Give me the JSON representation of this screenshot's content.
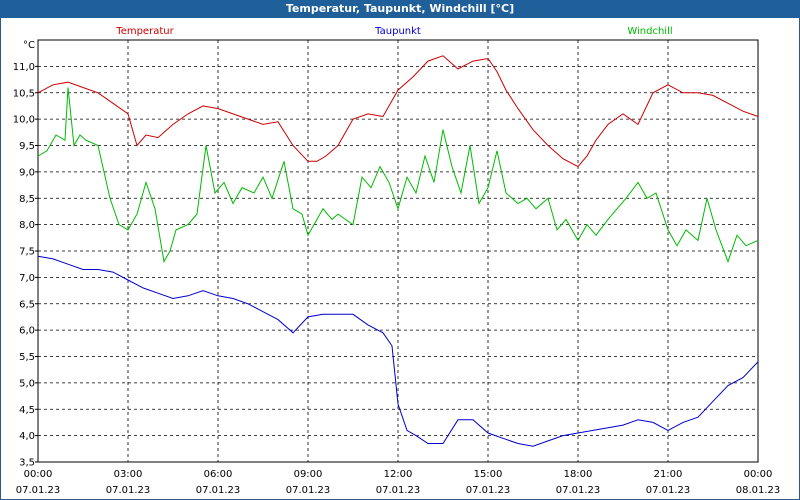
{
  "window": {
    "title": "Temperatur, Taupunkt, Windchill [°C]"
  },
  "chart_data": {
    "type": "line",
    "title": "Temperatur, Taupunkt, Windchill [°C]",
    "ylabel": "°C",
    "ylim": [
      3.5,
      11.5
    ],
    "grid": true,
    "yticks": [
      "3,5",
      "4,0",
      "4,5",
      "5,0",
      "5,5",
      "6,0",
      "6,5",
      "7,0",
      "7,5",
      "8,0",
      "8,5",
      "9,0",
      "9,5",
      "10,0",
      "10,5",
      "11,0"
    ],
    "xticks": [
      {
        "time": "00:00",
        "date": "07.01.23"
      },
      {
        "time": "03:00",
        "date": "07.01.23"
      },
      {
        "time": "06:00",
        "date": "07.01.23"
      },
      {
        "time": "09:00",
        "date": "07.01.23"
      },
      {
        "time": "12:00",
        "date": "07.01.23"
      },
      {
        "time": "15:00",
        "date": "07.01.23"
      },
      {
        "time": "18:00",
        "date": "07.01.23"
      },
      {
        "time": "21:00",
        "date": "07.01.23"
      },
      {
        "time": "00:00",
        "date": "08.01.23"
      }
    ],
    "series": [
      {
        "name": "Temperatur",
        "color": "#cc0000",
        "x": [
          0,
          0.5,
          1,
          1.5,
          2,
          2.5,
          3,
          3.3,
          3.6,
          4,
          4.5,
          5,
          5.5,
          6,
          6.5,
          7,
          7.5,
          8,
          8.5,
          9,
          9.3,
          9.6,
          10,
          10.5,
          11,
          11.5,
          12,
          12.5,
          13,
          13.5,
          14,
          14.5,
          15,
          15.3,
          15.6,
          16,
          16.5,
          17,
          17.5,
          18,
          18.3,
          18.6,
          19,
          19.5,
          20,
          20.5,
          21,
          21.5,
          22,
          22.5,
          23,
          23.5,
          24
        ],
        "values": [
          10.5,
          10.65,
          10.7,
          10.6,
          10.5,
          10.3,
          10.1,
          9.5,
          9.7,
          9.65,
          9.9,
          10.1,
          10.25,
          10.2,
          10.1,
          10.0,
          9.9,
          9.95,
          9.5,
          9.2,
          9.2,
          9.3,
          9.5,
          10.0,
          10.1,
          10.05,
          10.55,
          10.8,
          11.1,
          11.2,
          10.95,
          11.1,
          11.15,
          10.9,
          10.55,
          10.2,
          9.8,
          9.5,
          9.25,
          9.1,
          9.3,
          9.6,
          9.9,
          10.1,
          9.9,
          10.5,
          10.65,
          10.5,
          10.5,
          10.45,
          10.3,
          10.15,
          10.05
        ]
      },
      {
        "name": "Taupunkt",
        "color": "#0000cc",
        "x": [
          0,
          0.5,
          1,
          1.5,
          2,
          2.5,
          3,
          3.5,
          4,
          4.5,
          5,
          5.5,
          6,
          6.5,
          7,
          7.5,
          8,
          8.5,
          9,
          9.5,
          10,
          10.5,
          11,
          11.5,
          11.8,
          12,
          12.3,
          12.6,
          13,
          13.5,
          14,
          14.5,
          15,
          15.5,
          16,
          16.5,
          17,
          17.5,
          18,
          18.5,
          19,
          19.5,
          20,
          20.5,
          21,
          21.5,
          22,
          22.5,
          23,
          23.5,
          24
        ],
        "values": [
          7.4,
          7.35,
          7.25,
          7.15,
          7.15,
          7.1,
          6.95,
          6.8,
          6.7,
          6.6,
          6.65,
          6.75,
          6.65,
          6.6,
          6.5,
          6.35,
          6.2,
          5.95,
          6.25,
          6.3,
          6.3,
          6.3,
          6.1,
          5.95,
          5.7,
          4.6,
          4.1,
          4.0,
          3.85,
          3.85,
          4.3,
          4.3,
          4.05,
          3.95,
          3.85,
          3.8,
          3.9,
          4.0,
          4.05,
          4.1,
          4.15,
          4.2,
          4.3,
          4.25,
          4.1,
          4.25,
          4.35,
          4.65,
          4.95,
          5.1,
          5.4
        ]
      },
      {
        "name": "Windchill",
        "color": "#00bb00",
        "x": [
          0,
          0.3,
          0.6,
          0.9,
          1.0,
          1.2,
          1.4,
          1.6,
          2,
          2.4,
          2.7,
          3,
          3.3,
          3.6,
          3.9,
          4.2,
          4.4,
          4.6,
          5,
          5.3,
          5.6,
          5.9,
          6.2,
          6.5,
          6.8,
          7.2,
          7.5,
          7.8,
          8.2,
          8.5,
          8.8,
          9.0,
          9.2,
          9.5,
          9.8,
          10,
          10.5,
          10.8,
          11.1,
          11.4,
          11.7,
          12,
          12.3,
          12.6,
          12.9,
          13.2,
          13.5,
          13.8,
          14.1,
          14.4,
          14.7,
          15,
          15.3,
          15.6,
          16,
          16.3,
          16.6,
          17,
          17.3,
          17.6,
          18,
          18.3,
          18.6,
          19,
          19.3,
          19.6,
          20,
          20.3,
          20.6,
          21,
          21.3,
          21.6,
          22,
          22.3,
          22.6,
          23,
          23.3,
          23.6,
          24
        ],
        "values": [
          9.3,
          9.4,
          9.7,
          9.6,
          10.6,
          9.5,
          9.7,
          9.6,
          9.5,
          8.5,
          8.0,
          7.9,
          8.2,
          8.8,
          8.3,
          7.3,
          7.5,
          7.9,
          8.0,
          8.2,
          9.5,
          8.6,
          8.8,
          8.4,
          8.7,
          8.6,
          8.9,
          8.5,
          9.2,
          8.3,
          8.2,
          7.8,
          8.0,
          8.3,
          8.1,
          8.2,
          8.0,
          8.9,
          8.7,
          9.1,
          8.8,
          8.3,
          8.9,
          8.6,
          9.3,
          8.8,
          9.8,
          9.1,
          8.6,
          9.5,
          8.4,
          8.7,
          9.4,
          8.6,
          8.4,
          8.5,
          8.3,
          8.5,
          7.9,
          8.1,
          7.7,
          8.0,
          7.8,
          8.1,
          8.3,
          8.5,
          8.8,
          8.5,
          8.6,
          7.9,
          7.6,
          7.9,
          7.7,
          8.5,
          7.9,
          7.3,
          7.8,
          7.6,
          7.7
        ]
      }
    ]
  }
}
